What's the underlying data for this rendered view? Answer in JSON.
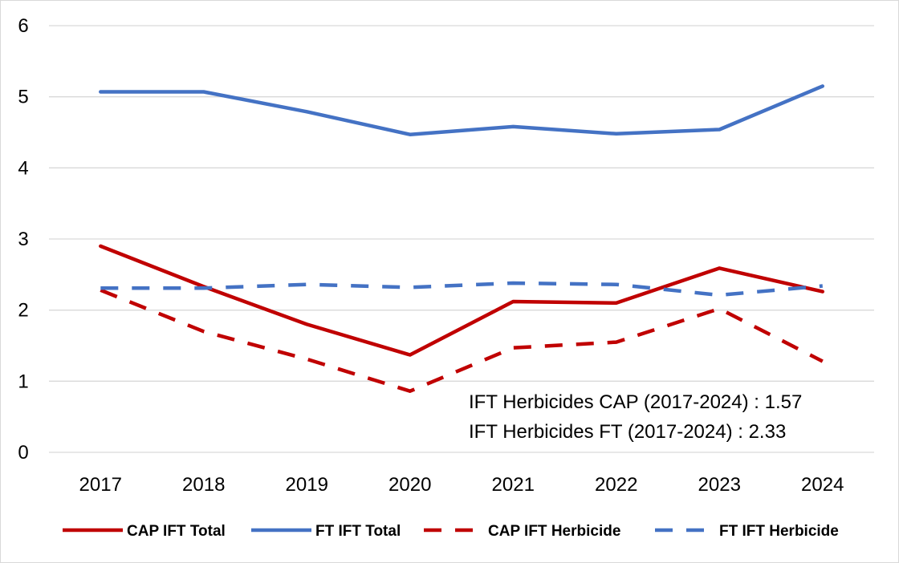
{
  "chart_data": {
    "type": "line",
    "categories": [
      "2017",
      "2018",
      "2019",
      "2020",
      "2021",
      "2022",
      "2023",
      "2024"
    ],
    "ylim": [
      0,
      6
    ],
    "yticks": [
      0,
      1,
      2,
      3,
      4,
      5,
      6
    ],
    "grid": true,
    "legend_position": "bottom",
    "series": [
      {
        "name": "CAP IFT Total",
        "color": "#c00000",
        "dash": "solid",
        "values": [
          2.9,
          2.33,
          1.8,
          1.37,
          2.12,
          2.1,
          2.59,
          2.26
        ]
      },
      {
        "name": "FT IFT Total",
        "color": "#4472c4",
        "dash": "solid",
        "values": [
          5.07,
          5.07,
          4.79,
          4.47,
          4.58,
          4.48,
          4.54,
          5.15
        ]
      },
      {
        "name": "CAP IFT Herbicide",
        "color": "#c00000",
        "dash": "dashed",
        "values": [
          2.28,
          1.7,
          1.31,
          0.86,
          1.47,
          1.55,
          2.02,
          1.28
        ]
      },
      {
        "name": "FT IFT Herbicide",
        "color": "#4472c4",
        "dash": "dashed",
        "values": [
          2.31,
          2.31,
          2.36,
          2.32,
          2.38,
          2.36,
          2.21,
          2.34
        ]
      }
    ],
    "annotations": [
      "IFT Herbicides CAP (2017-2024) : 1.57",
      "IFT Herbicides FT (2017-2024) : 2.33"
    ]
  }
}
